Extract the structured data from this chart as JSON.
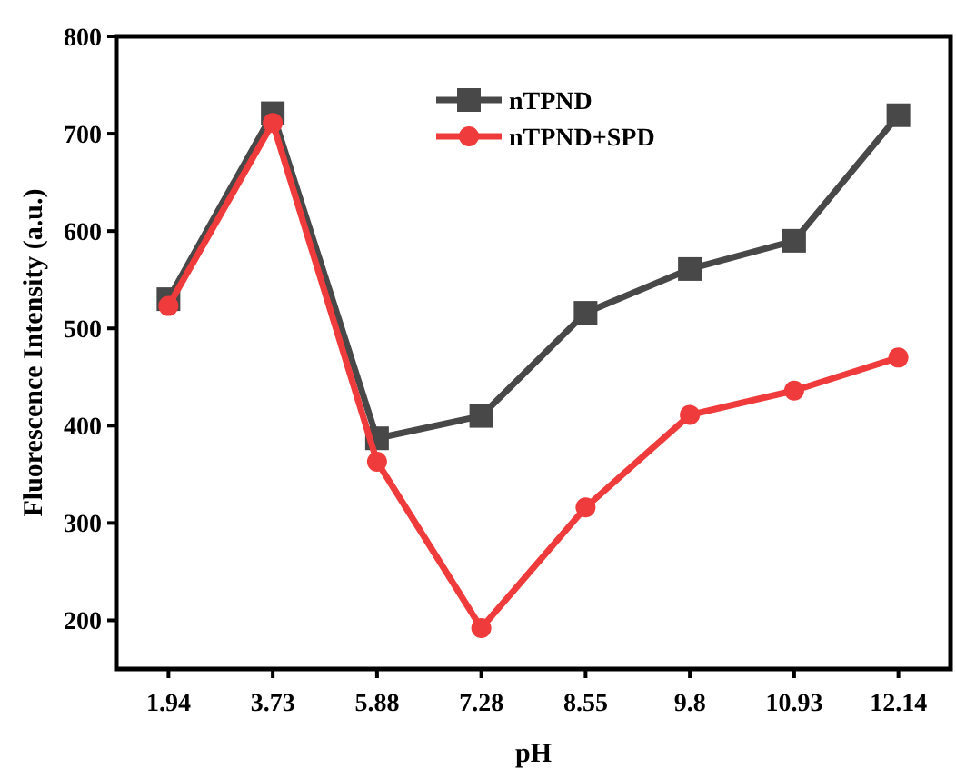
{
  "chart_data": {
    "type": "line",
    "xlabel": "pH",
    "ylabel": "Fluorescence Intensity (a.u.)",
    "categories": [
      "1.94",
      "3.73",
      "5.88",
      "7.28",
      "8.55",
      "9.8",
      "10.93",
      "12.14"
    ],
    "series": [
      {
        "name": "nTPND",
        "color": "#484848",
        "marker": "square",
        "values": [
          530,
          721,
          387,
          410,
          516,
          561,
          590,
          719
        ]
      },
      {
        "name": "nTPND+SPD",
        "color": "#ef3b3b",
        "marker": "circle",
        "values": [
          523,
          711,
          363,
          192,
          316,
          411,
          436,
          470
        ]
      }
    ],
    "ylim": [
      150,
      800
    ],
    "yticks": [
      200,
      300,
      400,
      500,
      600,
      700,
      800
    ],
    "grid": false,
    "legend": "top",
    "line_style": "solid"
  }
}
